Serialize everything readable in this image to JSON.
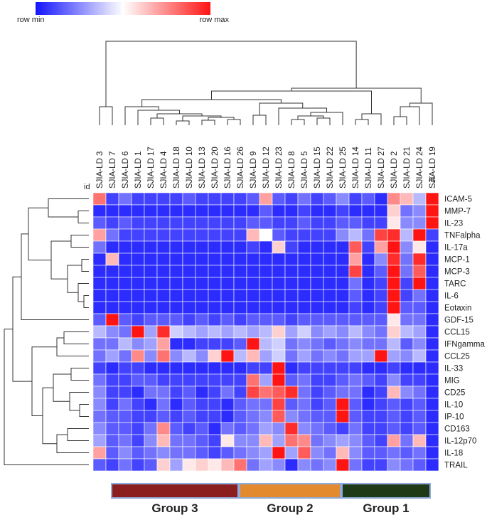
{
  "legend": {
    "min_label": "row min",
    "max_label": "row max",
    "min_color": "#1414ff",
    "mid_color": "#ffffff",
    "max_color": "#ff1414"
  },
  "id_label": "id",
  "chart_data": {
    "type": "heatmap",
    "columns": [
      "SJIA-LD 3",
      "SJIA-LD 7",
      "SJIA-LD 6",
      "SJIA-LD 1",
      "SJIA-LD 17",
      "SJIA-LD 4",
      "SJIA-LD 18",
      "SJIA-LD 10",
      "SJIA-LD 13",
      "SJIA-LD 20",
      "SJIA-LD 16",
      "SJIA-LD 26",
      "SJIA-LD 9",
      "SJIA-LD 12",
      "SJIA-LD 23",
      "SJIA-LD 8",
      "SJIA-LD 5",
      "SJIA-LD 15",
      "SJIA-LD 22",
      "SJIA-LD 25",
      "SJIA-LD 14",
      "SJIA-LD 11",
      "SJIA-LD 27",
      "SJIA-LD 2",
      "SJIA-LD 21",
      "SJIA-LD 24",
      "SJIA-LD 19"
    ],
    "rows": [
      "ICAM-5",
      "MMP-7",
      "IL-23",
      "TNFalpha",
      "IL-17a",
      "MCP-1",
      "MCP-3",
      "TARC",
      "IL-6",
      "Eotaxin",
      "GDF-15",
      "CCL15",
      "IFNgamma",
      "CCL25",
      "IL-33",
      "MIG",
      "CD25",
      "IL-10",
      "IP-10",
      "CD163",
      "IL-12p70",
      "IL-18",
      "TRAIL"
    ],
    "value_scale": "row min (-1) to row max (1)",
    "values": [
      [
        0.6,
        -0.8,
        -0.6,
        -0.8,
        -0.8,
        -0.8,
        -0.8,
        -0.7,
        -0.8,
        -0.8,
        -0.8,
        -0.8,
        -0.7,
        0.4,
        -0.7,
        -0.8,
        -0.6,
        -0.8,
        -0.7,
        -0.5,
        -0.8,
        -0.7,
        -0.9,
        0.5,
        0.3,
        -0.3,
        1.0
      ],
      [
        -0.9,
        -0.9,
        -0.9,
        -0.9,
        -0.9,
        -0.9,
        -0.9,
        -0.9,
        -0.9,
        -0.9,
        -0.9,
        -0.9,
        -0.9,
        -0.7,
        -0.9,
        -0.9,
        -0.8,
        -0.9,
        -0.9,
        -0.8,
        -0.9,
        -0.9,
        -0.9,
        0.2,
        -0.6,
        -0.5,
        1.0
      ],
      [
        -0.7,
        -0.8,
        -0.7,
        -0.8,
        -0.8,
        -0.8,
        -0.8,
        -0.8,
        -0.8,
        -0.8,
        -0.8,
        -0.8,
        -0.7,
        -0.7,
        -0.8,
        -0.8,
        -0.7,
        -0.8,
        -0.8,
        -0.7,
        -0.7,
        -0.8,
        -0.8,
        0.1,
        -0.5,
        -0.5,
        1.0
      ],
      [
        0.4,
        -0.6,
        -0.8,
        -0.8,
        -0.8,
        -0.8,
        -0.8,
        -0.8,
        -0.8,
        -0.8,
        -0.8,
        -0.8,
        0.3,
        0.0,
        -0.7,
        -0.8,
        -0.8,
        -0.8,
        -0.8,
        -0.5,
        -0.3,
        -0.6,
        0.8,
        0.9,
        -0.3,
        1.0,
        -0.8
      ],
      [
        -0.6,
        -0.9,
        -0.9,
        -0.9,
        -0.9,
        -0.9,
        -0.9,
        -0.9,
        -0.9,
        -0.9,
        -0.9,
        -0.9,
        -0.8,
        -0.9,
        0.2,
        -0.8,
        -0.9,
        -0.9,
        -0.9,
        -0.9,
        0.7,
        -0.8,
        0.4,
        1.0,
        -0.5,
        0.1,
        -0.9
      ],
      [
        -0.9,
        0.3,
        -0.9,
        -0.9,
        -0.9,
        -0.9,
        -0.9,
        -0.9,
        -0.9,
        -0.9,
        -0.9,
        -0.9,
        -0.9,
        -0.9,
        -0.9,
        -0.9,
        -0.9,
        -0.9,
        -0.9,
        -0.9,
        0.4,
        -0.9,
        -0.5,
        0.9,
        -0.6,
        0.9,
        -0.9
      ],
      [
        -0.9,
        -0.9,
        -0.9,
        -0.9,
        -0.9,
        -0.9,
        -0.9,
        -0.9,
        -0.9,
        -0.9,
        -0.9,
        -0.9,
        -0.9,
        -0.9,
        -0.9,
        -0.9,
        -0.9,
        -0.9,
        -0.9,
        -0.9,
        0.8,
        -0.9,
        -0.7,
        1.0,
        -0.6,
        0.7,
        -0.9
      ],
      [
        -0.9,
        -0.9,
        -0.9,
        -0.9,
        -0.9,
        -0.9,
        -0.9,
        -0.9,
        -0.9,
        -0.9,
        -0.9,
        -0.9,
        -0.9,
        -0.9,
        -0.9,
        -0.9,
        -0.9,
        -0.9,
        -0.9,
        -0.9,
        -0.6,
        -0.9,
        -0.8,
        1.0,
        -0.8,
        1.0,
        -0.9
      ],
      [
        -0.9,
        -0.9,
        -0.9,
        -0.9,
        -0.9,
        -0.9,
        -0.9,
        -0.9,
        -0.9,
        -0.9,
        -0.9,
        -0.9,
        -0.9,
        -0.9,
        -0.9,
        -0.9,
        -0.9,
        -0.9,
        -0.9,
        -0.9,
        -0.7,
        -0.9,
        -0.8,
        1.0,
        -0.8,
        -0.6,
        -0.9
      ],
      [
        -0.9,
        -0.9,
        -0.9,
        -0.9,
        -0.9,
        -0.9,
        -0.9,
        -0.9,
        -0.9,
        -0.9,
        -0.9,
        -0.9,
        -0.9,
        -0.9,
        -0.9,
        -0.9,
        -0.9,
        -0.9,
        -0.9,
        -0.9,
        -0.8,
        -0.9,
        -0.8,
        1.0,
        -0.7,
        -0.7,
        -0.9
      ],
      [
        -0.7,
        1.0,
        -0.7,
        -0.8,
        -0.7,
        -0.7,
        -0.7,
        -0.8,
        -0.7,
        -0.8,
        -0.7,
        -0.8,
        -0.7,
        -0.7,
        -0.7,
        -0.8,
        -0.7,
        -0.7,
        -0.7,
        -0.7,
        -0.7,
        -0.7,
        -0.7,
        0.1,
        -0.6,
        -0.6,
        -0.9
      ],
      [
        -0.3,
        -0.5,
        -0.6,
        1.0,
        -0.4,
        0.9,
        -0.2,
        -0.3,
        -0.4,
        -0.3,
        -0.4,
        -0.3,
        -0.4,
        -0.3,
        0.2,
        -0.4,
        -0.2,
        -0.5,
        -0.4,
        -0.5,
        -0.3,
        -0.5,
        -0.6,
        0.2,
        -0.3,
        -0.4,
        -0.9
      ],
      [
        -0.6,
        -0.6,
        -0.3,
        -0.5,
        -0.4,
        0.4,
        -0.9,
        -0.9,
        -0.8,
        -0.8,
        -0.8,
        -0.7,
        1.0,
        -0.3,
        -0.2,
        -0.6,
        -0.5,
        -0.6,
        -0.7,
        -0.6,
        -0.5,
        -0.6,
        -0.6,
        -0.3,
        -0.7,
        -0.5,
        -0.9
      ],
      [
        -0.6,
        -0.4,
        -0.6,
        0.5,
        -0.5,
        0.6,
        -0.5,
        -0.3,
        -0.5,
        0.2,
        1.0,
        -0.3,
        0.3,
        -0.4,
        -0.2,
        -0.6,
        -0.4,
        -0.6,
        -0.5,
        -0.6,
        -0.4,
        -0.4,
        1.0,
        -0.4,
        -0.5,
        -0.3,
        -0.9
      ],
      [
        -0.8,
        -0.9,
        -0.8,
        -0.8,
        -0.9,
        -0.9,
        -0.9,
        -0.9,
        -0.9,
        -0.9,
        -0.9,
        -0.9,
        -0.8,
        -0.8,
        1.0,
        -0.9,
        -0.8,
        -0.8,
        -0.8,
        -0.8,
        -0.8,
        -0.9,
        -0.9,
        -0.8,
        -0.9,
        -0.9,
        -0.9
      ],
      [
        -0.6,
        -0.8,
        -0.8,
        -0.7,
        -0.7,
        -0.8,
        -0.8,
        -0.8,
        -0.8,
        -0.8,
        -0.8,
        -0.8,
        0.6,
        -0.4,
        1.0,
        -0.7,
        -0.6,
        -0.8,
        -0.8,
        -0.7,
        -0.6,
        -0.7,
        -0.8,
        -0.5,
        -0.8,
        -0.8,
        -0.9
      ],
      [
        -0.5,
        -0.8,
        -0.8,
        -0.9,
        -0.6,
        -0.6,
        -0.8,
        -0.7,
        -0.9,
        -0.8,
        -0.6,
        -0.8,
        0.8,
        0.6,
        0.7,
        0.9,
        -0.6,
        -0.8,
        -0.7,
        -0.6,
        -0.6,
        -0.9,
        -0.8,
        0.3,
        -0.5,
        -0.6,
        -0.9
      ],
      [
        -0.5,
        -0.8,
        -0.6,
        -0.8,
        -0.9,
        -0.6,
        -0.9,
        -0.7,
        -0.8,
        -0.8,
        -0.9,
        -0.7,
        -0.6,
        -0.6,
        0.8,
        -0.7,
        -0.6,
        -0.8,
        -0.7,
        1.0,
        -0.7,
        -0.9,
        -0.8,
        -0.7,
        -0.8,
        -0.7,
        -0.9
      ],
      [
        -0.6,
        -0.7,
        -0.7,
        -0.8,
        -0.8,
        -0.7,
        -0.8,
        -0.7,
        -0.8,
        -0.8,
        -0.9,
        -0.7,
        -0.6,
        -0.5,
        0.7,
        -0.5,
        -0.6,
        -0.7,
        -0.7,
        1.0,
        -0.7,
        -0.8,
        -0.8,
        -0.7,
        -0.8,
        -0.7,
        -0.9
      ],
      [
        -0.5,
        -0.7,
        -0.7,
        -0.8,
        -0.6,
        0.5,
        -0.7,
        -0.8,
        -0.7,
        -0.9,
        -0.6,
        -0.7,
        -0.6,
        -0.4,
        -0.5,
        0.9,
        -0.5,
        -0.6,
        -0.7,
        -0.8,
        -0.6,
        -0.8,
        -0.8,
        -0.7,
        -0.8,
        -0.7,
        -0.9
      ],
      [
        -0.4,
        -0.7,
        -0.6,
        -0.8,
        -0.5,
        0.3,
        -0.6,
        -0.6,
        -0.7,
        -0.8,
        0.1,
        -0.5,
        -0.5,
        0.3,
        -0.4,
        0.6,
        0.5,
        -0.6,
        -0.5,
        -0.4,
        -0.5,
        -0.7,
        -0.8,
        0.4,
        -0.6,
        0.3,
        -0.9
      ],
      [
        0.4,
        -0.7,
        -0.5,
        -0.7,
        -0.6,
        -0.5,
        -0.6,
        -0.6,
        -0.7,
        -0.8,
        -0.7,
        -0.6,
        -0.5,
        -0.4,
        1.0,
        -0.4,
        0.7,
        -0.5,
        -0.6,
        0.3,
        -0.5,
        -0.7,
        -0.7,
        -0.6,
        -0.7,
        -0.6,
        -0.9
      ],
      [
        -0.7,
        -0.8,
        -0.6,
        -0.8,
        -0.7,
        0.2,
        -0.4,
        0.1,
        0.2,
        0.1,
        0.3,
        0.6,
        -0.6,
        -0.4,
        -0.5,
        -0.9,
        -0.5,
        -0.6,
        -0.5,
        1.0,
        -0.6,
        -0.8,
        -0.8,
        -0.5,
        -0.6,
        -0.7,
        -0.9
      ]
    ],
    "groups": [
      {
        "name": "Group 3",
        "start_col": 1,
        "end_col": 11,
        "color": "#8b1f1f"
      },
      {
        "name": "Group 2",
        "start_col": 11,
        "end_col": 19,
        "color": "#e48a2e"
      },
      {
        "name": "Group 1",
        "start_col": 19,
        "end_col": 26,
        "color": "#1e3a16"
      }
    ],
    "group_border_color": "#8fa9d9"
  }
}
